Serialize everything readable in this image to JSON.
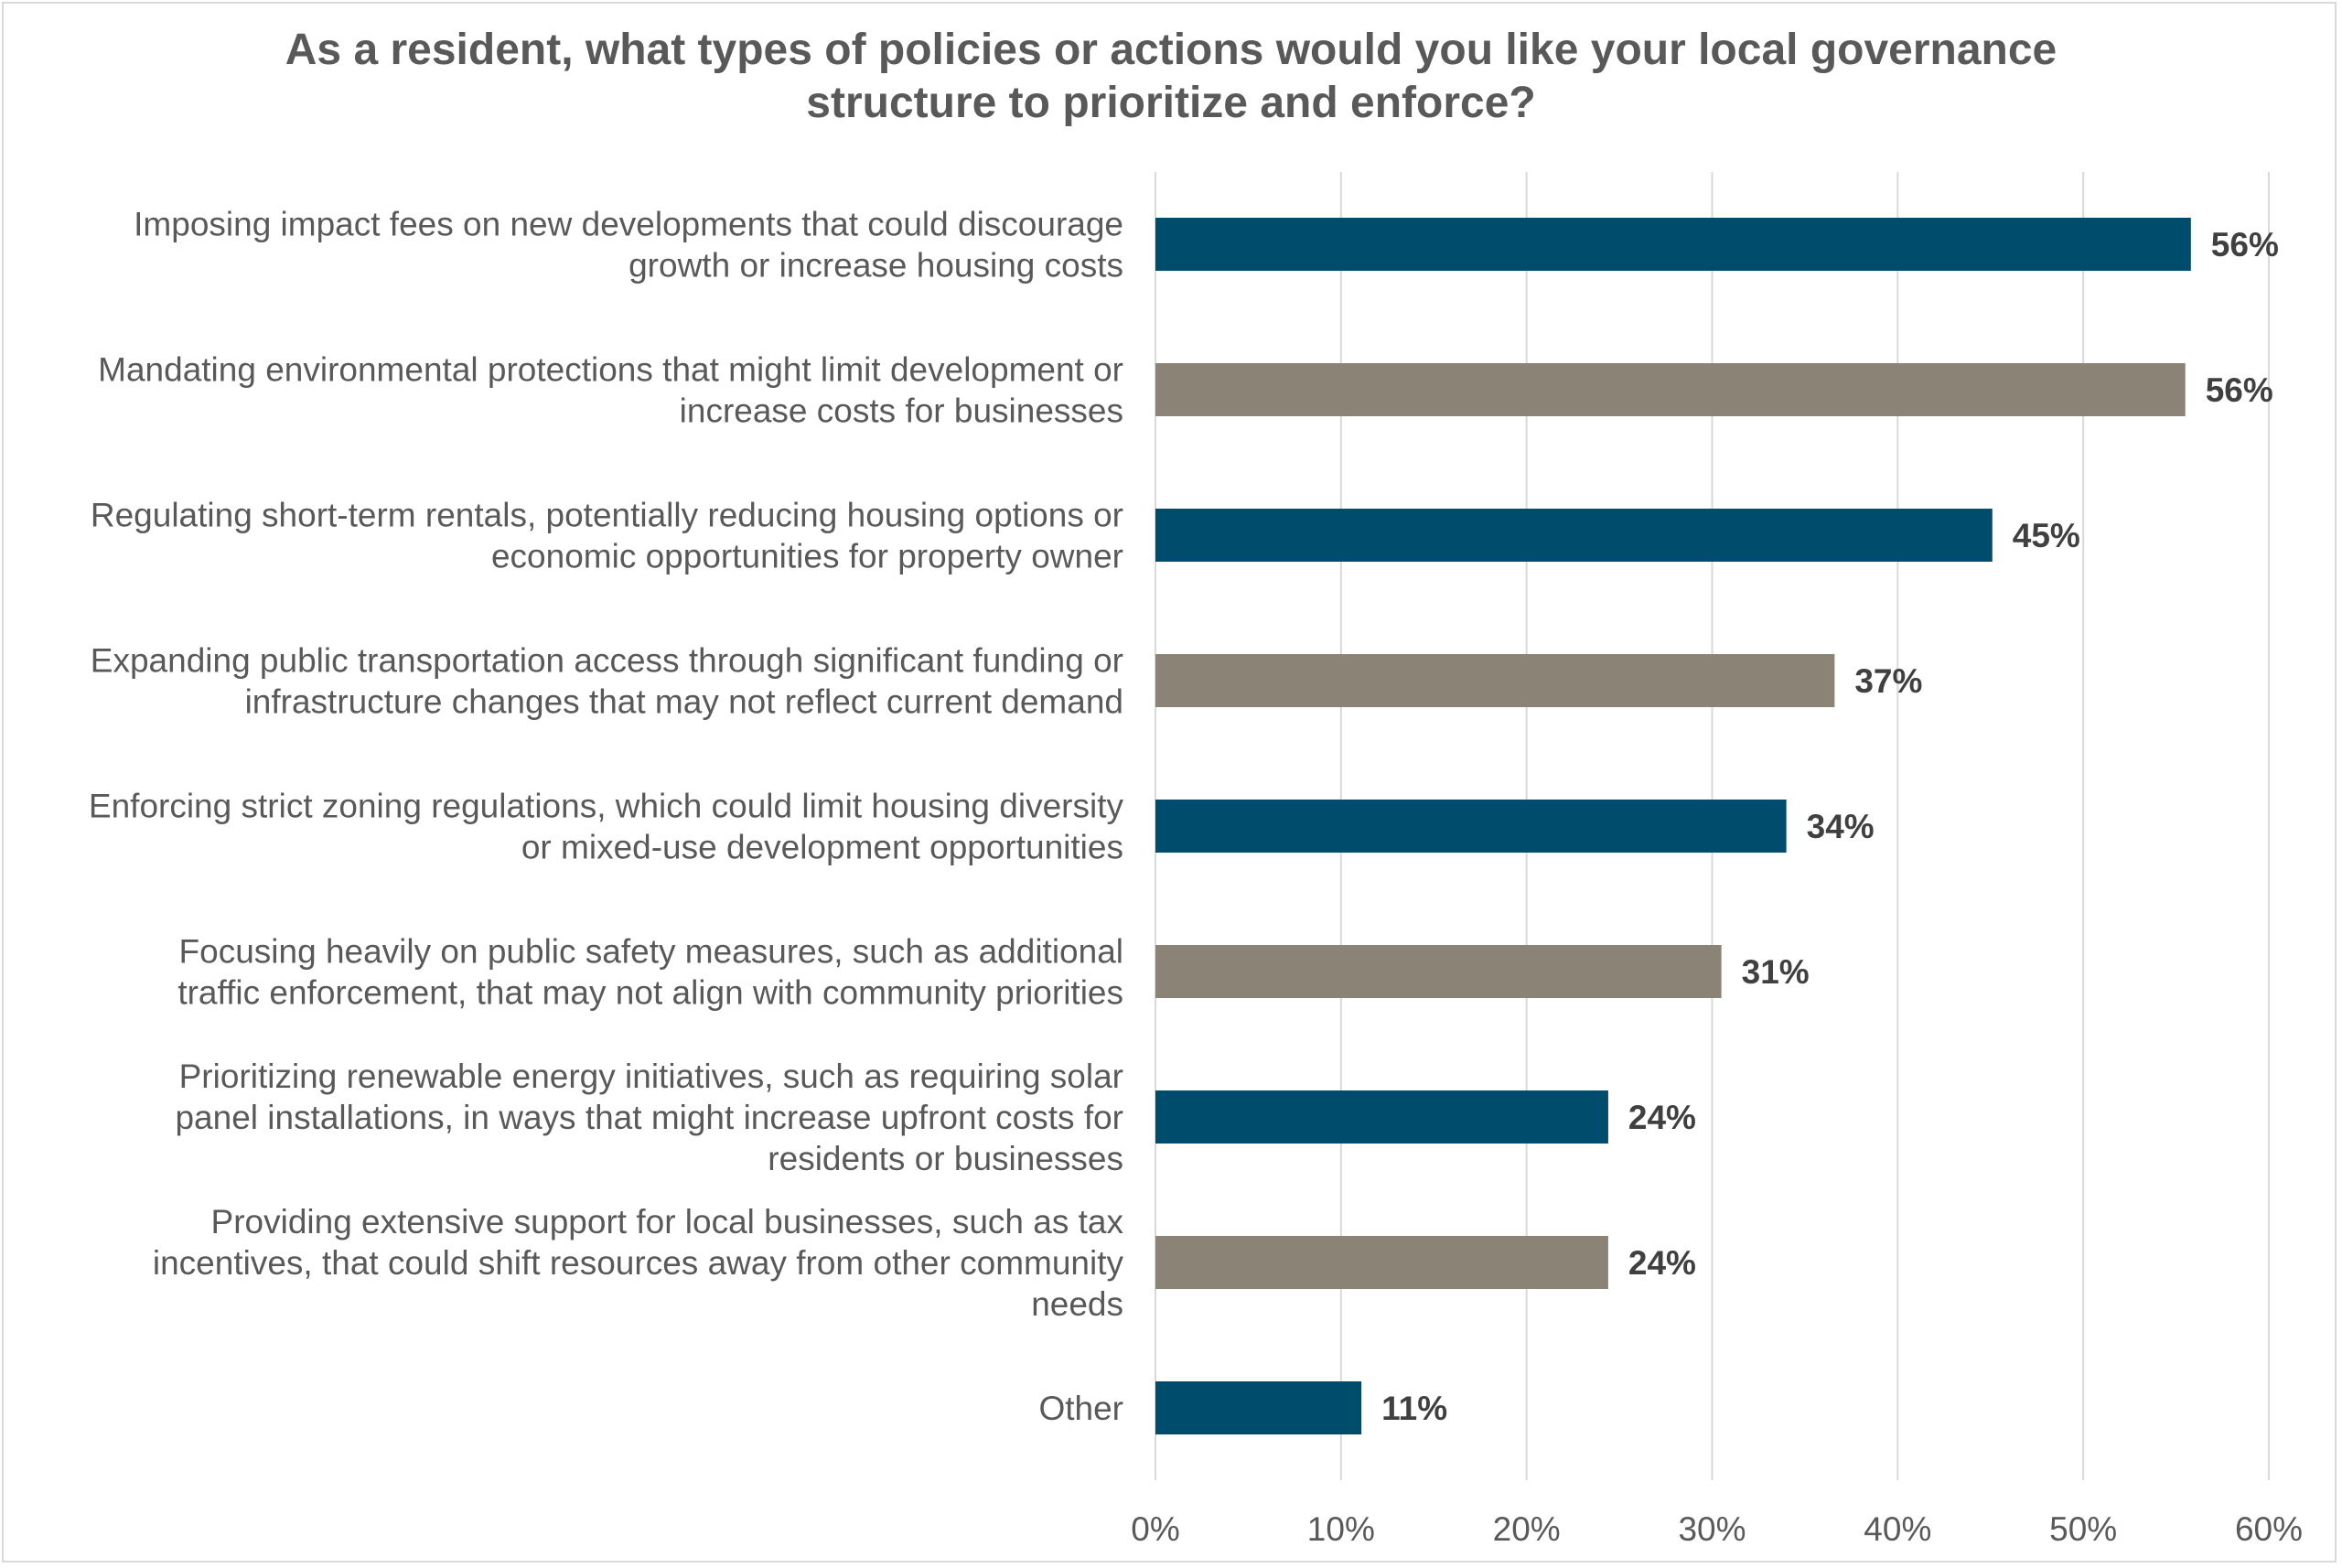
{
  "chart_data": {
    "type": "bar",
    "orientation": "horizontal",
    "title_lines": [
      "As a resident, what types of policies or actions would you like your local governance",
      "structure to prioritize and enforce?"
    ],
    "categories": [
      [
        "Imposing impact fees on new developments that could discourage",
        "growth or increase housing costs"
      ],
      [
        "Mandating environmental protections that might limit development or",
        "increase costs for businesses"
      ],
      [
        "Regulating short-term rentals, potentially reducing housing options or",
        "economic opportunities for property owner"
      ],
      [
        "Expanding public transportation access through significant funding or",
        "infrastructure changes that may not reflect current demand"
      ],
      [
        "Enforcing strict zoning regulations, which could limit housing diversity",
        "or mixed-use development opportunities"
      ],
      [
        "Focusing heavily on public safety measures, such as additional",
        "traffic enforcement, that may not align with community priorities"
      ],
      [
        "Prioritizing renewable energy initiatives, such as requiring solar",
        "panel installations, in ways that might increase upfront costs for",
        "residents or businesses"
      ],
      [
        "Providing extensive support for local businesses, such as tax",
        "incentives, that could shift resources away from other community",
        "needs"
      ],
      [
        "Other"
      ]
    ],
    "values": [
      55.8,
      55.5,
      45.1,
      36.6,
      34.0,
      30.5,
      24.4,
      24.4,
      11.1
    ],
    "data_labels": [
      "56%",
      "56%",
      "45%",
      "37%",
      "34%",
      "31%",
      "24%",
      "24%",
      "11%"
    ],
    "bar_colors": [
      "#004c6d",
      "#8c8377",
      "#004c6d",
      "#8c8377",
      "#004c6d",
      "#8c8377",
      "#004c6d",
      "#8c8377",
      "#004c6d"
    ],
    "xlim": [
      0,
      60
    ],
    "xticks": [
      0,
      10,
      20,
      30,
      40,
      50,
      60
    ],
    "xtick_labels": [
      "0%",
      "10%",
      "20%",
      "30%",
      "40%",
      "50%",
      "60%"
    ],
    "grid": true,
    "gridline_color": "#d9d9d9",
    "legend": "none"
  }
}
